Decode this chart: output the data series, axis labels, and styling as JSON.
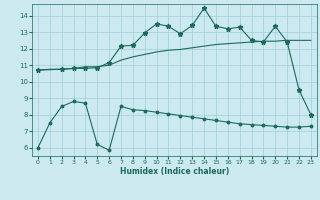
{
  "xlabel": "Humidex (Indice chaleur)",
  "bg_color": "#cce9f0",
  "grid_color": "#9fcfdc",
  "line_color": "#1a6b5a",
  "xlim": [
    -0.5,
    23.5
  ],
  "ylim": [
    5.5,
    14.7
  ],
  "xticks": [
    0,
    1,
    2,
    3,
    4,
    5,
    6,
    7,
    8,
    9,
    10,
    11,
    12,
    13,
    14,
    15,
    16,
    17,
    18,
    19,
    20,
    21,
    22,
    23
  ],
  "yticks": [
    6,
    7,
    8,
    9,
    10,
    11,
    12,
    13,
    14
  ],
  "line1_x": [
    0,
    1,
    2,
    3,
    4,
    5,
    6,
    7,
    8,
    9,
    10,
    11,
    12,
    13,
    14,
    15,
    16,
    17,
    18,
    19,
    20,
    21,
    22,
    23
  ],
  "line1_y": [
    6.0,
    7.5,
    8.5,
    8.8,
    8.7,
    6.2,
    5.85,
    8.5,
    8.3,
    8.25,
    8.15,
    8.05,
    7.95,
    7.85,
    7.75,
    7.65,
    7.55,
    7.45,
    7.4,
    7.35,
    7.3,
    7.25,
    7.25,
    7.3
  ],
  "line2_x": [
    0,
    1,
    2,
    3,
    4,
    5,
    6,
    7,
    8,
    9,
    10,
    11,
    12,
    13,
    14,
    15,
    16,
    17,
    18,
    19,
    20,
    21,
    22,
    23
  ],
  "line2_y": [
    10.7,
    10.75,
    10.75,
    10.8,
    10.9,
    10.9,
    11.0,
    11.3,
    11.5,
    11.65,
    11.8,
    11.9,
    11.95,
    12.05,
    12.15,
    12.25,
    12.3,
    12.35,
    12.4,
    12.45,
    12.45,
    12.5,
    12.5,
    12.5
  ],
  "line3_x": [
    0,
    2,
    3,
    4,
    5,
    6,
    7,
    8,
    9,
    10,
    11,
    12,
    13,
    14,
    15,
    16,
    17,
    18,
    19,
    20,
    21,
    22,
    23
  ],
  "line3_y": [
    10.7,
    10.75,
    10.8,
    10.8,
    10.85,
    11.15,
    12.15,
    12.2,
    12.95,
    13.5,
    13.35,
    12.9,
    13.4,
    14.45,
    13.35,
    13.2,
    13.3,
    12.5,
    12.4,
    13.35,
    12.4,
    9.5,
    8.0
  ]
}
